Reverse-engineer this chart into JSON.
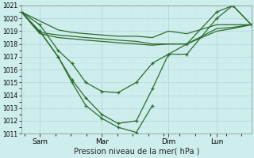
{
  "title": "Pression niveau de la mer( hPa )",
  "bg_color": "#ceeeed",
  "grid_major_color": "#b0d8d8",
  "grid_minor_color": "#c4e8e8",
  "line_color": "#2d6b2d",
  "ylim": [
    1011,
    1021
  ],
  "yticks": [
    1011,
    1012,
    1013,
    1014,
    1015,
    1016,
    1017,
    1018,
    1019,
    1020,
    1021
  ],
  "xtick_labels": [
    "Sam",
    "Mar",
    "Dim",
    "Lun"
  ],
  "xtick_positions": [
    0.08,
    0.35,
    0.64,
    0.85
  ],
  "series_no_marker": [
    [
      0.0,
      0.08,
      0.16,
      0.22,
      0.28,
      0.35,
      0.42,
      0.5,
      0.57,
      0.64,
      0.72,
      0.85,
      0.92,
      1.0
    ],
    [
      1020.5,
      1019.8,
      1019.1,
      1018.9,
      1018.8,
      1018.7,
      1018.6,
      1018.6,
      1018.5,
      1019.0,
      1018.8,
      1019.5,
      1019.5,
      1019.5
    ]
  ],
  "series_no_marker2": [
    [
      0.0,
      0.08,
      0.16,
      0.22,
      0.28,
      0.35,
      0.42,
      0.5,
      0.57,
      0.64,
      0.72,
      0.85,
      0.92,
      1.0
    ],
    [
      1020.5,
      1018.9,
      1018.7,
      1018.6,
      1018.5,
      1018.4,
      1018.3,
      1018.2,
      1018.0,
      1018.0,
      1018.0,
      1019.2,
      1019.3,
      1019.5
    ]
  ],
  "series_no_marker3": [
    [
      0.0,
      0.08,
      0.16,
      0.22,
      0.28,
      0.35,
      0.42,
      0.5,
      0.57,
      0.64,
      0.72,
      0.85,
      0.92,
      1.0
    ],
    [
      1020.5,
      1018.8,
      1018.5,
      1018.4,
      1018.3,
      1018.2,
      1018.1,
      1018.0,
      1017.9,
      1018.0,
      1018.0,
      1019.0,
      1019.2,
      1019.5
    ]
  ],
  "series_marker1_x": [
    0.0,
    0.08,
    0.16,
    0.22,
    0.28,
    0.35,
    0.42,
    0.5,
    0.57,
    0.64,
    0.72,
    0.85,
    0.92,
    1.0
  ],
  "series_marker1_y": [
    1020.5,
    1019.5,
    1017.5,
    1016.5,
    1015.0,
    1014.3,
    1014.2,
    1015.0,
    1016.5,
    1017.2,
    1017.2,
    1020.0,
    1021.0,
    1019.5
  ],
  "series_marker2_x": [
    0.0,
    0.08,
    0.16,
    0.22,
    0.28,
    0.35,
    0.42,
    0.5,
    0.57,
    0.64,
    0.72,
    0.85,
    0.92,
    1.0
  ],
  "series_marker2_y": [
    1020.5,
    1019.0,
    1017.0,
    1015.2,
    1013.8,
    1012.5,
    1011.8,
    1012.0,
    1014.5,
    1017.2,
    1018.0,
    1020.5,
    1021.0,
    1019.5
  ],
  "series_marker3_x": [
    0.08,
    0.16,
    0.22,
    0.28,
    0.35,
    0.42,
    0.5,
    0.57
  ],
  "series_marker3_y": [
    1019.0,
    1017.0,
    1015.0,
    1013.2,
    1012.2,
    1011.5,
    1011.1,
    1013.2
  ]
}
